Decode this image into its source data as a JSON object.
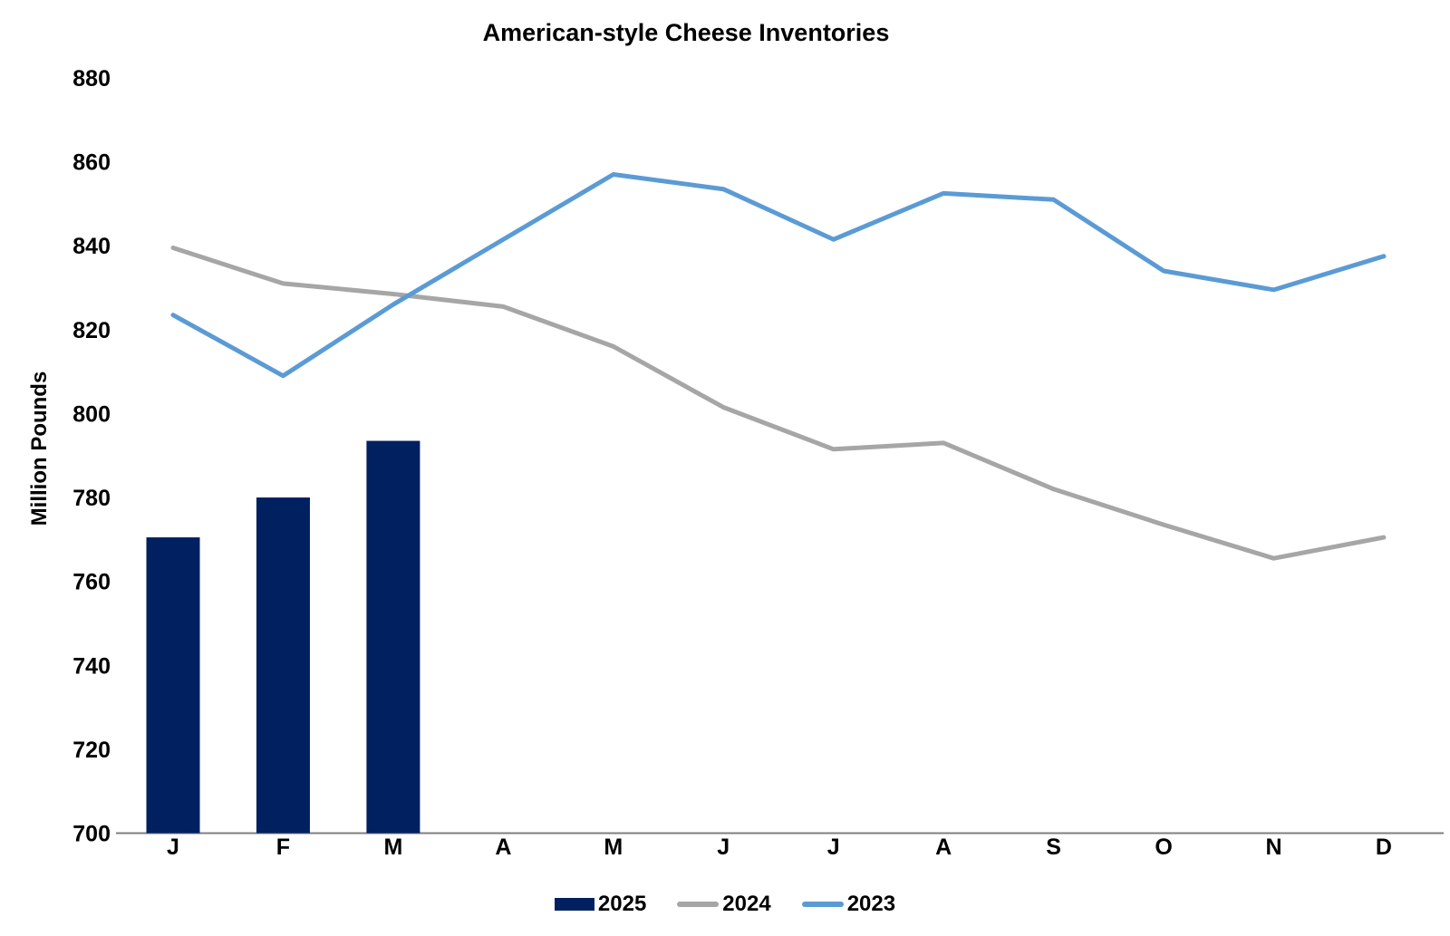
{
  "chart_data": {
    "type": "combo",
    "title": "American-style Cheese Inventories",
    "ylabel": "Million Pounds",
    "xlabel": "",
    "categories": [
      "J",
      "F",
      "M",
      "A",
      "M",
      "J",
      "J",
      "A",
      "S",
      "O",
      "N",
      "D"
    ],
    "ylim": [
      700,
      880
    ],
    "ytick_step": 20,
    "grid": false,
    "legend_position": "bottom",
    "axis_color": "#7f7f7f",
    "text_color": "#000000",
    "series": [
      {
        "name": "2025",
        "type": "bar",
        "color": "#002060",
        "values": [
          770.5,
          780,
          793.5,
          null,
          null,
          null,
          null,
          null,
          null,
          null,
          null,
          null
        ]
      },
      {
        "name": "2024",
        "type": "line",
        "color": "#a6a6a6",
        "values": [
          839.5,
          831,
          828.5,
          825.5,
          816,
          801.5,
          791.5,
          793,
          782,
          773.5,
          765.5,
          770.5
        ]
      },
      {
        "name": "2023",
        "type": "line",
        "color": "#5b9bd5",
        "values": [
          823.5,
          809,
          826,
          841.5,
          857,
          853.5,
          841.5,
          852.5,
          851,
          834,
          829.5,
          837.5
        ]
      }
    ]
  }
}
